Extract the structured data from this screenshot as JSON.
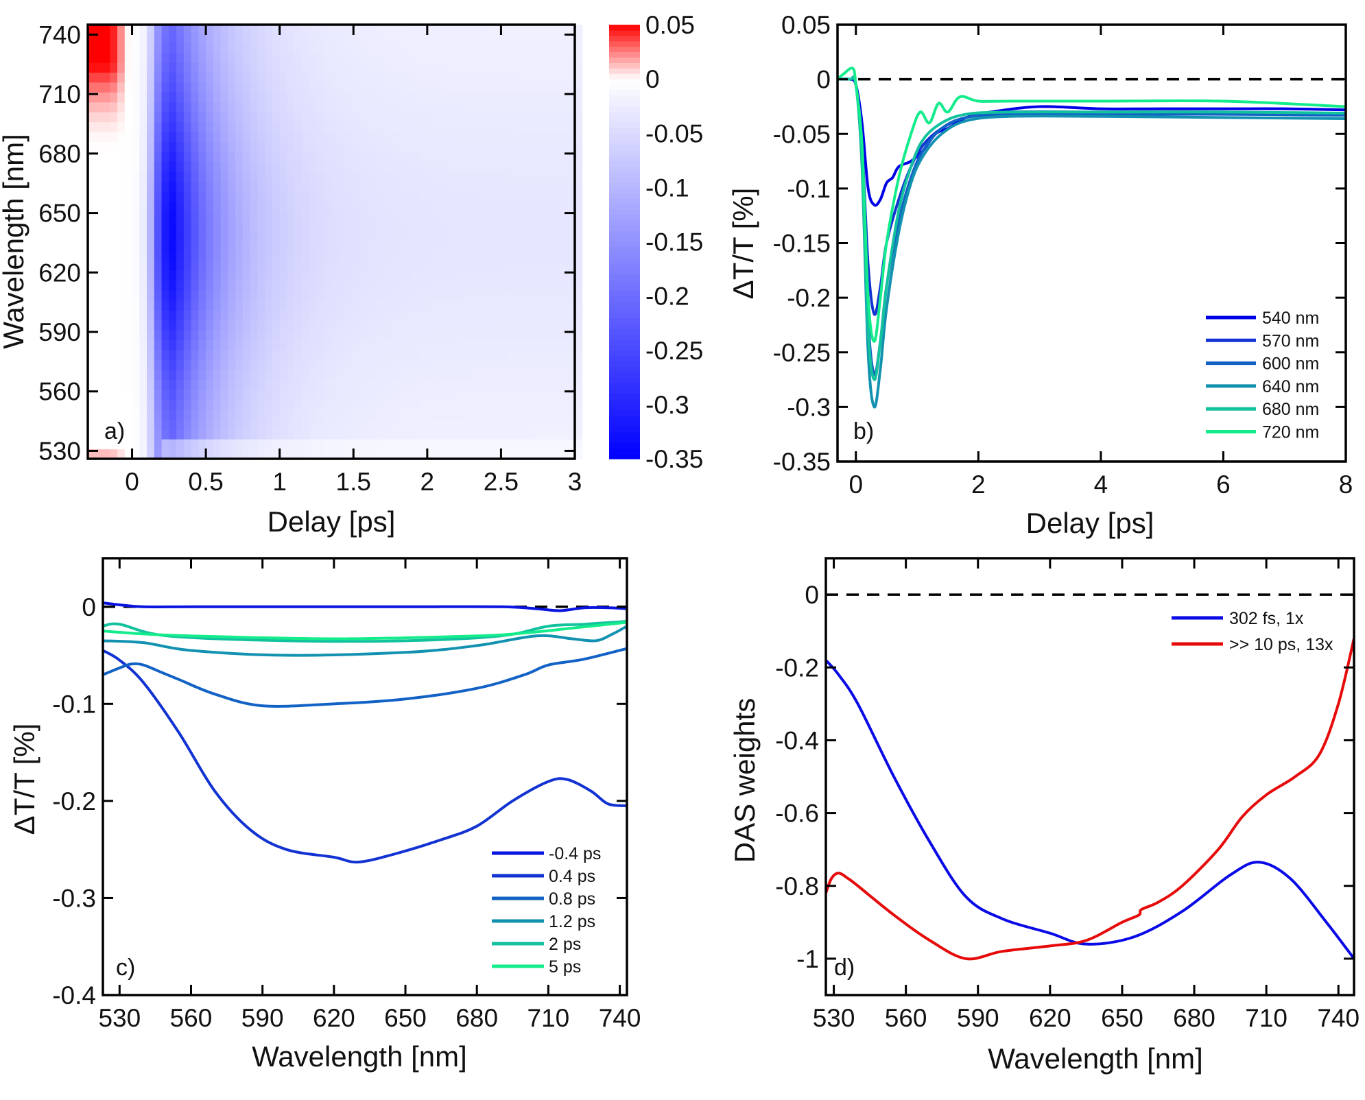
{
  "chart_data": [
    {
      "id": "a",
      "type": "heatmap",
      "panel_label": "a)",
      "xlabel": "Delay [ps]",
      "ylabel": "Wavelength [nm]",
      "xlim": [
        -0.3,
        3
      ],
      "ylim": [
        526,
        745
      ],
      "xticks": [
        "0",
        "0.5",
        "1",
        "1.5",
        "2",
        "2.5",
        "3"
      ],
      "xtick_values": [
        0,
        0.5,
        1,
        1.5,
        2,
        2.5,
        3
      ],
      "yticks": [
        "530",
        "560",
        "590",
        "620",
        "650",
        "680",
        "710",
        "740"
      ],
      "ytick_values": [
        530,
        560,
        590,
        620,
        650,
        680,
        710,
        740
      ],
      "colorbar": {
        "range": [
          -0.35,
          0.05
        ],
        "ticks": [
          "0.05",
          "0",
          "-0.05",
          "-0.1",
          "-0.15",
          "-0.2",
          "-0.25",
          "-0.3",
          "-0.35"
        ],
        "tick_values": [
          0.05,
          0,
          -0.05,
          -0.1,
          -0.15,
          -0.2,
          -0.25,
          -0.3,
          -0.35
        ],
        "colors": {
          "negative": "#0000ff",
          "zero": "#ffffff",
          "positive": "#ff0000"
        }
      },
      "description_values": {
        "peak_bleach_delay_ps": 0.3,
        "min_value": -0.35,
        "max_value": 0.05
      }
    },
    {
      "id": "b",
      "type": "line",
      "panel_label": "b)",
      "xlabel": "Delay [ps]",
      "ylabel": "ΔT/T [%]",
      "xlim": [
        -0.3,
        8
      ],
      "ylim": [
        -0.35,
        0.05
      ],
      "xticks": [
        "0",
        "2",
        "4",
        "6",
        "8"
      ],
      "xtick_values": [
        0,
        2,
        4,
        6,
        8
      ],
      "yticks": [
        "0.05",
        "0",
        "-0.05",
        "-0.1",
        "-0.15",
        "-0.2",
        "-0.25",
        "-0.3",
        "-0.35"
      ],
      "ytick_values": [
        0.05,
        0,
        -0.05,
        -0.1,
        -0.15,
        -0.2,
        -0.25,
        -0.3,
        -0.35
      ],
      "zero_line": true,
      "legend_position": "bottom-right",
      "series": [
        {
          "name": "540 nm",
          "color": "#0000e6",
          "x": [
            -0.3,
            -0.1,
            0,
            0.1,
            0.2,
            0.3,
            0.4,
            0.5,
            0.6,
            0.7,
            0.9,
            1.1,
            1.3,
            1.5,
            1.8,
            2.2,
            3,
            4,
            5,
            6,
            7,
            8
          ],
          "y": [
            0,
            0,
            -0.005,
            -0.04,
            -0.1,
            -0.115,
            -0.11,
            -0.095,
            -0.09,
            -0.08,
            -0.075,
            -0.065,
            -0.05,
            -0.045,
            -0.035,
            -0.03,
            -0.025,
            -0.027,
            -0.027,
            -0.027,
            -0.027,
            -0.028
          ]
        },
        {
          "name": "570 nm",
          "color": "#1232d2",
          "x": [
            -0.3,
            -0.1,
            0,
            0.1,
            0.2,
            0.3,
            0.4,
            0.5,
            0.7,
            0.9,
            1.1,
            1.4,
            1.8,
            2.5,
            4,
            6,
            8
          ],
          "y": [
            0,
            0,
            -0.005,
            -0.06,
            -0.17,
            -0.215,
            -0.19,
            -0.15,
            -0.11,
            -0.08,
            -0.06,
            -0.045,
            -0.035,
            -0.03,
            -0.03,
            -0.03,
            -0.032
          ]
        },
        {
          "name": "600 nm",
          "color": "#1262c6",
          "x": [
            -0.3,
            -0.1,
            0,
            0.1,
            0.2,
            0.3,
            0.4,
            0.5,
            0.7,
            0.9,
            1.1,
            1.4,
            1.8,
            2.5,
            4,
            6,
            8
          ],
          "y": [
            0,
            0,
            -0.005,
            -0.07,
            -0.22,
            -0.27,
            -0.24,
            -0.19,
            -0.13,
            -0.09,
            -0.065,
            -0.045,
            -0.035,
            -0.032,
            -0.032,
            -0.032,
            -0.033
          ]
        },
        {
          "name": "640 nm",
          "color": "#1292b0",
          "x": [
            -0.3,
            -0.1,
            0,
            0.1,
            0.2,
            0.3,
            0.4,
            0.5,
            0.7,
            0.9,
            1.1,
            1.4,
            1.8,
            2.5,
            4,
            6,
            8
          ],
          "y": [
            0,
            0,
            -0.005,
            -0.08,
            -0.25,
            -0.3,
            -0.265,
            -0.21,
            -0.14,
            -0.095,
            -0.07,
            -0.05,
            -0.038,
            -0.034,
            -0.034,
            -0.035,
            -0.036
          ]
        },
        {
          "name": "680 nm",
          "color": "#12c29e",
          "x": [
            -0.3,
            -0.1,
            0,
            0.1,
            0.2,
            0.3,
            0.4,
            0.5,
            0.7,
            0.9,
            1.1,
            1.4,
            1.8,
            2.5,
            4,
            6,
            8
          ],
          "y": [
            0,
            0,
            -0.005,
            -0.075,
            -0.23,
            -0.275,
            -0.24,
            -0.19,
            -0.12,
            -0.08,
            -0.055,
            -0.04,
            -0.032,
            -0.03,
            -0.03,
            -0.03,
            -0.031
          ]
        },
        {
          "name": "720 nm",
          "color": "#14ec8c",
          "x": [
            -0.3,
            -0.2,
            -0.05,
            0,
            0.1,
            0.2,
            0.3,
            0.4,
            0.5,
            0.7,
            0.9,
            1.05,
            1.2,
            1.35,
            1.5,
            1.7,
            2,
            2.5,
            4,
            6,
            8
          ],
          "y": [
            0,
            0.005,
            0.01,
            -0.005,
            -0.06,
            -0.2,
            -0.24,
            -0.2,
            -0.15,
            -0.09,
            -0.05,
            -0.03,
            -0.04,
            -0.022,
            -0.03,
            -0.016,
            -0.02,
            -0.02,
            -0.02,
            -0.02,
            -0.025
          ]
        }
      ]
    },
    {
      "id": "c",
      "type": "line",
      "panel_label": "c)",
      "xlabel": "Wavelength [nm]",
      "ylabel": "ΔT/T [%]",
      "xlim": [
        523,
        743
      ],
      "ylim": [
        -0.4,
        0.05
      ],
      "xticks": [
        "530",
        "560",
        "590",
        "620",
        "650",
        "680",
        "710",
        "740"
      ],
      "xtick_values": [
        530,
        560,
        590,
        620,
        650,
        680,
        710,
        740
      ],
      "yticks": [
        "0",
        "-0.1",
        "-0.2",
        "-0.3",
        "-0.4"
      ],
      "ytick_values": [
        0,
        -0.1,
        -0.2,
        -0.3,
        -0.4
      ],
      "zero_line": true,
      "legend_position": "bottom-right",
      "series": [
        {
          "name": "-0.4 ps",
          "color": "#0a14e0",
          "x": [
            523,
            530,
            540,
            560,
            600,
            650,
            690,
            705,
            715,
            725,
            735,
            743
          ],
          "y": [
            0.004,
            0.002,
            0,
            0,
            0,
            0,
            0,
            -0.002,
            -0.004,
            -0.001,
            -0.001,
            -0.002
          ]
        },
        {
          "name": "0.4 ps",
          "color": "#1232d2",
          "x": [
            523,
            530,
            540,
            555,
            570,
            585,
            600,
            620,
            630,
            645,
            665,
            680,
            695,
            710,
            718,
            728,
            735,
            743
          ],
          "y": [
            -0.045,
            -0.055,
            -0.078,
            -0.13,
            -0.19,
            -0.23,
            -0.25,
            -0.258,
            -0.263,
            -0.255,
            -0.24,
            -0.226,
            -0.2,
            -0.18,
            -0.178,
            -0.19,
            -0.203,
            -0.205
          ]
        },
        {
          "name": "0.8 ps",
          "color": "#1262c6",
          "x": [
            523,
            530,
            535,
            540,
            548,
            555,
            570,
            590,
            620,
            650,
            680,
            700,
            710,
            725,
            743
          ],
          "y": [
            -0.07,
            -0.063,
            -0.059,
            -0.06,
            -0.068,
            -0.075,
            -0.09,
            -0.102,
            -0.1,
            -0.095,
            -0.084,
            -0.07,
            -0.06,
            -0.054,
            -0.043
          ]
        },
        {
          "name": "1.2 ps",
          "color": "#1292b0",
          "x": [
            523,
            540,
            560,
            600,
            650,
            680,
            705,
            720,
            730,
            737,
            743
          ],
          "y": [
            -0.035,
            -0.037,
            -0.045,
            -0.05,
            -0.047,
            -0.04,
            -0.03,
            -0.033,
            -0.035,
            -0.028,
            -0.02
          ]
        },
        {
          "name": "2 ps",
          "color": "#12c29e",
          "x": [
            523,
            530,
            550,
            600,
            650,
            690,
            710,
            725,
            743
          ],
          "y": [
            -0.02,
            -0.018,
            -0.03,
            -0.035,
            -0.035,
            -0.03,
            -0.02,
            -0.018,
            -0.015
          ]
        },
        {
          "name": "5 ps",
          "color": "#14ec8c",
          "x": [
            523,
            540,
            560,
            620,
            680,
            700,
            720,
            743
          ],
          "y": [
            -0.025,
            -0.028,
            -0.03,
            -0.033,
            -0.03,
            -0.027,
            -0.022,
            -0.016
          ]
        }
      ]
    },
    {
      "id": "d",
      "type": "line",
      "panel_label": "d)",
      "xlabel": "Wavelength [nm]",
      "ylabel": "DAS weights",
      "xlim": [
        526.7,
        746.5
      ],
      "ylim": [
        -1.1,
        0.1
      ],
      "xticks": [
        "530",
        "560",
        "590",
        "620",
        "650",
        "680",
        "710",
        "740"
      ],
      "xtick_values": [
        530,
        560,
        590,
        620,
        650,
        680,
        710,
        740
      ],
      "yticks": [
        "0",
        "-0.2",
        "-0.4",
        "-0.6",
        "-0.8",
        "-1"
      ],
      "ytick_values": [
        0,
        -0.2,
        -0.4,
        -0.6,
        -0.8,
        -1
      ],
      "zero_line": true,
      "legend_position": "top-right",
      "series": [
        {
          "name": "302 fs, 1x",
          "color": "#0a0ae6",
          "x": [
            526.7,
            532,
            540,
            555,
            570,
            585,
            600,
            620,
            635,
            655,
            675,
            695,
            707,
            720,
            735,
            746.5
          ],
          "y": [
            -0.18,
            -0.22,
            -0.3,
            -0.5,
            -0.68,
            -0.83,
            -0.89,
            -0.93,
            -0.96,
            -0.94,
            -0.87,
            -0.77,
            -0.735,
            -0.78,
            -0.9,
            -1.0
          ]
        },
        {
          "name": ">> 10 ps, 13x",
          "color": "#e60a0a",
          "x": [
            526.7,
            529,
            532,
            536,
            540,
            555,
            570,
            585,
            600,
            620,
            635,
            650,
            657,
            658,
            665,
            675,
            690,
            700,
            710,
            722,
            732,
            740,
            746.5
          ],
          "y": [
            -0.82,
            -0.78,
            -0.765,
            -0.78,
            -0.8,
            -0.88,
            -0.95,
            -1.0,
            -0.98,
            -0.965,
            -0.95,
            -0.9,
            -0.88,
            -0.865,
            -0.845,
            -0.8,
            -0.7,
            -0.61,
            -0.55,
            -0.5,
            -0.44,
            -0.3,
            -0.12
          ]
        }
      ]
    }
  ]
}
